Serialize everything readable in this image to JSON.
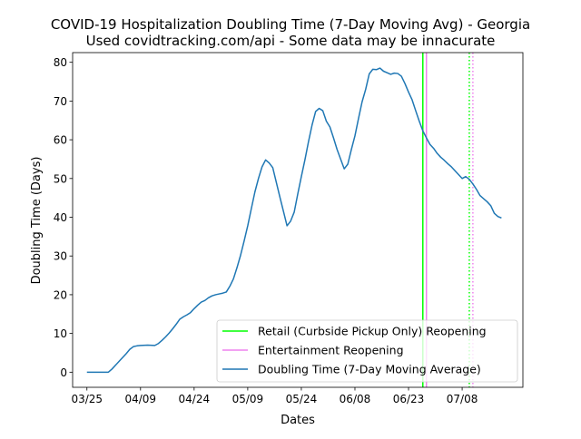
{
  "chart_data": {
    "type": "line",
    "title": "COVID-19 Hospitalization Doubling Time (7-Day Moving Avg) - Georgia",
    "subtitle": "Used covidtracking.com/api - Some data may be innacurate",
    "xlabel": "Dates",
    "ylabel": "Doubling Time (Days)",
    "xlim": [
      "2020-03-21",
      "2020-07-25"
    ],
    "ylim": [
      -3.9,
      82.5
    ],
    "x_ticks": [
      "2020-03-25",
      "2020-04-09",
      "2020-04-24",
      "2020-05-09",
      "2020-05-24",
      "2020-06-08",
      "2020-06-23",
      "2020-07-08"
    ],
    "x_tick_labels": [
      "03/25",
      "04/09",
      "04/24",
      "05/09",
      "05/24",
      "06/08",
      "06/23",
      "07/08"
    ],
    "y_ticks": [
      0,
      10,
      20,
      30,
      40,
      50,
      60,
      70,
      80
    ],
    "grid": false,
    "legend_position": "lower right",
    "series": [
      {
        "name": "Doubling Time (7-Day Moving Average)",
        "color": "#1f77b4",
        "style": "solid",
        "points": [
          [
            "2020-03-25",
            0.0
          ],
          [
            "2020-03-27",
            0.0
          ],
          [
            "2020-03-29",
            0.0
          ],
          [
            "2020-03-31",
            0.0
          ],
          [
            "2020-04-01",
            0.8
          ],
          [
            "2020-04-02",
            1.8
          ],
          [
            "2020-04-03",
            2.8
          ],
          [
            "2020-04-04",
            3.8
          ],
          [
            "2020-04-05",
            4.8
          ],
          [
            "2020-04-06",
            5.9
          ],
          [
            "2020-04-07",
            6.6
          ],
          [
            "2020-04-08",
            6.8
          ],
          [
            "2020-04-09",
            6.9
          ],
          [
            "2020-04-11",
            7.0
          ],
          [
            "2020-04-13",
            6.9
          ],
          [
            "2020-04-14",
            7.4
          ],
          [
            "2020-04-15",
            8.2
          ],
          [
            "2020-04-16",
            9.1
          ],
          [
            "2020-04-17",
            10.1
          ],
          [
            "2020-04-18",
            11.2
          ],
          [
            "2020-04-19",
            12.4
          ],
          [
            "2020-04-20",
            13.7
          ],
          [
            "2020-04-21",
            14.3
          ],
          [
            "2020-04-22",
            14.8
          ],
          [
            "2020-04-23",
            15.4
          ],
          [
            "2020-04-24",
            16.4
          ],
          [
            "2020-04-25",
            17.3
          ],
          [
            "2020-04-26",
            18.1
          ],
          [
            "2020-04-27",
            18.5
          ],
          [
            "2020-04-28",
            19.2
          ],
          [
            "2020-04-29",
            19.7
          ],
          [
            "2020-04-30",
            20.0
          ],
          [
            "2020-05-01",
            20.2
          ],
          [
            "2020-05-02",
            20.4
          ],
          [
            "2020-05-03",
            20.7
          ],
          [
            "2020-05-04",
            22.2
          ],
          [
            "2020-05-05",
            24.1
          ],
          [
            "2020-05-06",
            27.0
          ],
          [
            "2020-05-07",
            30.2
          ],
          [
            "2020-05-08",
            33.9
          ],
          [
            "2020-05-09",
            37.8
          ],
          [
            "2020-05-10",
            42.2
          ],
          [
            "2020-05-11",
            46.5
          ],
          [
            "2020-05-12",
            50.0
          ],
          [
            "2020-05-13",
            53.0
          ],
          [
            "2020-05-14",
            54.8
          ],
          [
            "2020-05-15",
            54.0
          ],
          [
            "2020-05-16",
            52.8
          ],
          [
            "2020-05-17",
            49.0
          ],
          [
            "2020-05-18",
            45.2
          ],
          [
            "2020-05-19",
            41.5
          ],
          [
            "2020-05-20",
            37.8
          ],
          [
            "2020-05-21",
            39.0
          ],
          [
            "2020-05-22",
            41.3
          ],
          [
            "2020-05-23",
            46.0
          ],
          [
            "2020-05-24",
            50.5
          ],
          [
            "2020-05-25",
            54.8
          ],
          [
            "2020-05-26",
            59.5
          ],
          [
            "2020-05-27",
            63.8
          ],
          [
            "2020-05-28",
            67.3
          ],
          [
            "2020-05-29",
            68.1
          ],
          [
            "2020-05-30",
            67.5
          ],
          [
            "2020-05-31",
            64.8
          ],
          [
            "2020-06-01",
            63.3
          ],
          [
            "2020-06-02",
            60.5
          ],
          [
            "2020-06-03",
            57.5
          ],
          [
            "2020-06-04",
            55.0
          ],
          [
            "2020-06-05",
            52.5
          ],
          [
            "2020-06-06",
            53.7
          ],
          [
            "2020-06-07",
            57.5
          ],
          [
            "2020-06-08",
            61.0
          ],
          [
            "2020-06-09",
            65.5
          ],
          [
            "2020-06-10",
            69.8
          ],
          [
            "2020-06-11",
            73.0
          ],
          [
            "2020-06-12",
            77.0
          ],
          [
            "2020-06-13",
            78.2
          ],
          [
            "2020-06-14",
            78.1
          ],
          [
            "2020-06-15",
            78.5
          ],
          [
            "2020-06-16",
            77.7
          ],
          [
            "2020-06-17",
            77.3
          ],
          [
            "2020-06-18",
            76.9
          ],
          [
            "2020-06-19",
            77.2
          ],
          [
            "2020-06-20",
            77.1
          ],
          [
            "2020-06-21",
            76.4
          ],
          [
            "2020-06-22",
            74.5
          ],
          [
            "2020-06-23",
            72.3
          ],
          [
            "2020-06-24",
            70.3
          ],
          [
            "2020-06-25",
            67.5
          ],
          [
            "2020-06-26",
            64.8
          ],
          [
            "2020-06-27",
            62.3
          ],
          [
            "2020-06-28",
            60.5
          ],
          [
            "2020-06-29",
            58.8
          ],
          [
            "2020-06-30",
            57.8
          ],
          [
            "2020-07-01",
            56.5
          ],
          [
            "2020-07-02",
            55.5
          ],
          [
            "2020-07-03",
            54.7
          ],
          [
            "2020-07-04",
            53.8
          ],
          [
            "2020-07-05",
            53.0
          ],
          [
            "2020-07-06",
            52.0
          ],
          [
            "2020-07-07",
            51.0
          ],
          [
            "2020-07-08",
            50.0
          ],
          [
            "2020-07-09",
            50.5
          ],
          [
            "2020-07-10",
            49.8
          ],
          [
            "2020-07-11",
            48.6
          ],
          [
            "2020-07-12",
            47.2
          ],
          [
            "2020-07-13",
            45.6
          ],
          [
            "2020-07-14",
            44.8
          ],
          [
            "2020-07-15",
            44.0
          ],
          [
            "2020-07-16",
            43.0
          ],
          [
            "2020-07-17",
            41.0
          ],
          [
            "2020-07-18",
            40.2
          ],
          [
            "2020-07-19",
            39.8
          ]
        ]
      }
    ],
    "vertical_lines": [
      {
        "name": "Retail (Curbside Pickup Only) Reopening",
        "date": "2020-06-27",
        "color": "#00ff00",
        "style": "solid",
        "in_legend": true
      },
      {
        "name": "Entertainment Reopening",
        "date": "2020-06-28",
        "color": "#ee82ee",
        "style": "solid",
        "in_legend": true
      },
      {
        "date": "2020-07-10",
        "color": "#00ff00",
        "style": "dotted",
        "in_legend": false
      },
      {
        "date": "2020-07-11",
        "color": "#ee82ee",
        "style": "dotted",
        "in_legend": false
      }
    ],
    "legend_entries": [
      {
        "label": "Retail (Curbside Pickup Only) Reopening",
        "color": "#00ff00"
      },
      {
        "label": "Entertainment Reopening",
        "color": "#ee82ee"
      },
      {
        "label": "Doubling Time (7-Day Moving Average)",
        "color": "#1f77b4"
      }
    ]
  }
}
